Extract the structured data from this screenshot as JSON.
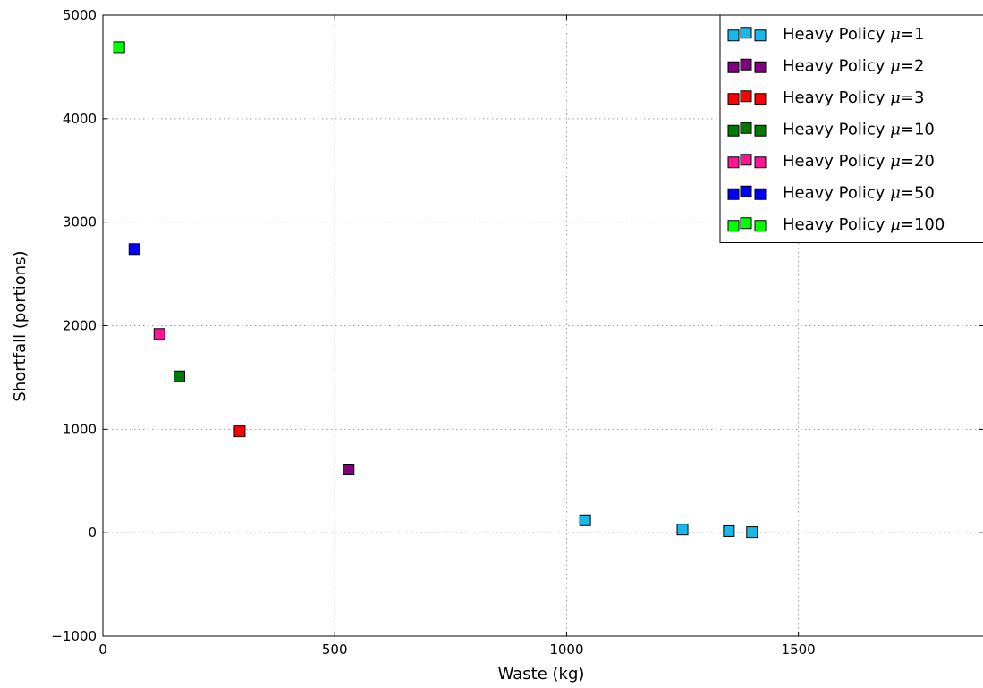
{
  "chart_data": {
    "type": "scatter",
    "xlabel": "Waste (kg)",
    "ylabel": "Shortfall (portions)",
    "xlim": [
      0,
      1900
    ],
    "ylim": [
      -1000,
      5000
    ],
    "x_ticks": [
      0,
      500,
      1000,
      1500
    ],
    "y_ticks": [
      -1000,
      0,
      1000,
      2000,
      3000,
      4000,
      5000
    ],
    "x_tick_labels": [
      "0",
      "500",
      "1000",
      "1500"
    ],
    "y_tick_labels": [
      "−1000",
      "0",
      "1000",
      "2000",
      "3000",
      "4000",
      "5000"
    ],
    "grid": true,
    "legend_position": "top-right",
    "marker": "square",
    "series": [
      {
        "name": "Heavy Policy",
        "mu": "1",
        "color": "#18b8ea",
        "points": [
          [
            1040,
            120
          ],
          [
            1250,
            30
          ],
          [
            1350,
            15
          ],
          [
            1400,
            5
          ]
        ]
      },
      {
        "name": "Heavy Policy",
        "mu": "2",
        "color": "#800080",
        "points": [
          [
            530,
            610
          ]
        ]
      },
      {
        "name": "Heavy Policy",
        "mu": "3",
        "color": "#ff0000",
        "points": [
          [
            295,
            980
          ]
        ]
      },
      {
        "name": "Heavy Policy",
        "mu": "10",
        "color": "#007a00",
        "points": [
          [
            165,
            1510
          ]
        ]
      },
      {
        "name": "Heavy Policy",
        "mu": "20",
        "color": "#ff1493",
        "points": [
          [
            122,
            1920
          ]
        ]
      },
      {
        "name": "Heavy Policy",
        "mu": "50",
        "color": "#0000ff",
        "points": [
          [
            68,
            2740
          ]
        ]
      },
      {
        "name": "Heavy Policy",
        "mu": "100",
        "color": "#00ff00",
        "points": [
          [
            35,
            4690
          ]
        ]
      }
    ]
  }
}
